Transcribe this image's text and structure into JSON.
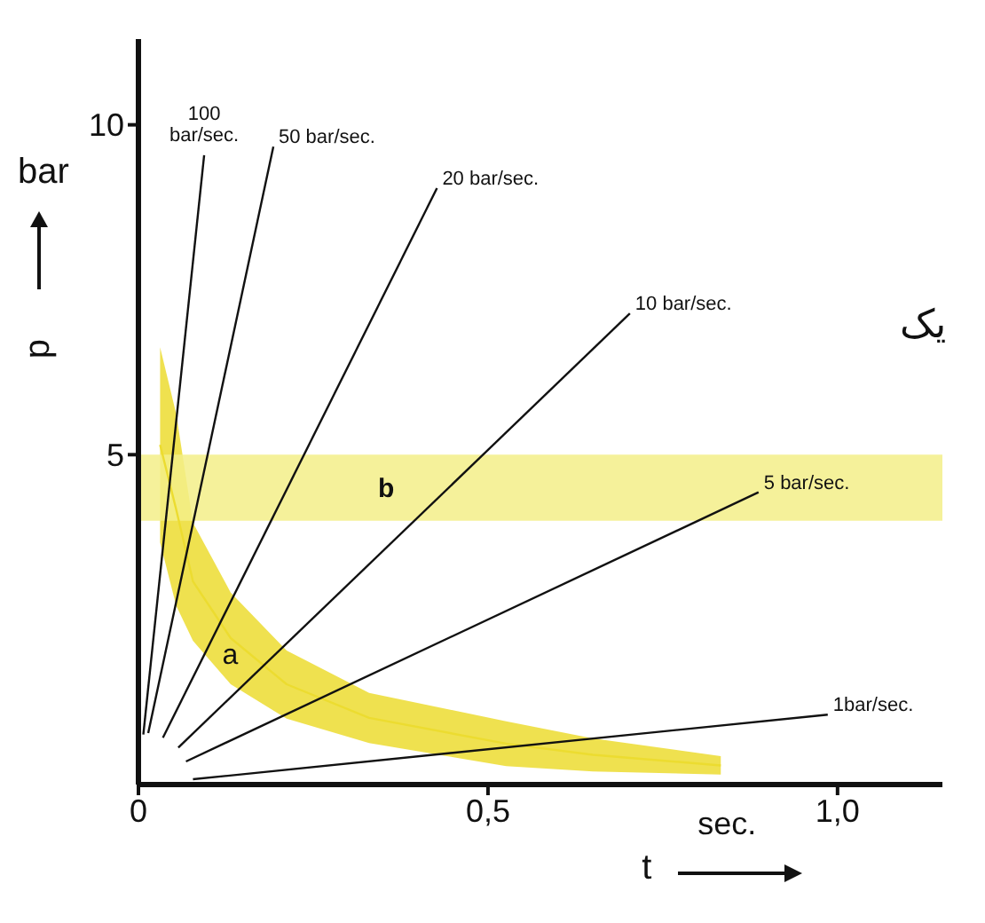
{
  "chart_data": {
    "type": "line",
    "xlabel": "t",
    "ylabel": "p",
    "xlim": [
      0,
      1.15
    ],
    "ylim": [
      0,
      11.3
    ],
    "xticks": [
      0,
      {
        "value": 0.5,
        "label": "0,5"
      },
      {
        "value": 1,
        "label": "1,0"
      }
    ],
    "yticks": [
      5,
      10
    ],
    "series": [
      {
        "name": "100 bar/sec.",
        "color": "#111111",
        "x": [
          0.007,
          0.094
        ],
        "values": [
          0.76,
          9.54
        ]
      },
      {
        "name": "50 bar/sec.",
        "color": "#111111",
        "x": [
          0.014,
          0.193
        ],
        "values": [
          0.78,
          9.67
        ]
      },
      {
        "name": "20 bar/sec.",
        "color": "#111111",
        "x": [
          0.035,
          0.427
        ],
        "values": [
          0.71,
          9.04
        ]
      },
      {
        "name": "10 bar/sec.",
        "color": "#111111",
        "x": [
          0.057,
          0.703
        ],
        "values": [
          0.56,
          7.14
        ]
      },
      {
        "name": "5 bar/sec.",
        "color": "#111111",
        "x": [
          0.068,
          0.887
        ],
        "values": [
          0.35,
          4.43
        ]
      },
      {
        "name": "1bar/sec.",
        "color": "#111111",
        "x": [
          0.078,
          0.986
        ],
        "values": [
          0.08,
          1.06
        ]
      },
      {
        "color": "#ecdc30",
        "x": [
          0.031,
          0.054,
          0.078,
          0.132,
          0.212,
          0.33,
          0.526,
          0.65,
          0.833
        ],
        "values": [
          5.15,
          4.17,
          3.08,
          2.22,
          1.52,
          1.01,
          0.62,
          0.45,
          0.29
        ],
        "lower": [
          3.67,
          2.71,
          2.18,
          1.52,
          1.0,
          0.63,
          0.28,
          0.2,
          0.15
        ],
        "upper": [
          6.63,
          5.62,
          3.97,
          2.91,
          2.03,
          1.39,
          0.96,
          0.7,
          0.43
        ]
      }
    ],
    "bands": [
      {
        "axis": "y",
        "from": 4,
        "to": 5,
        "label": "b",
        "color": "#f3ef88"
      }
    ],
    "annotations": [
      "bar",
      "sec.",
      "a",
      "یک"
    ]
  }
}
